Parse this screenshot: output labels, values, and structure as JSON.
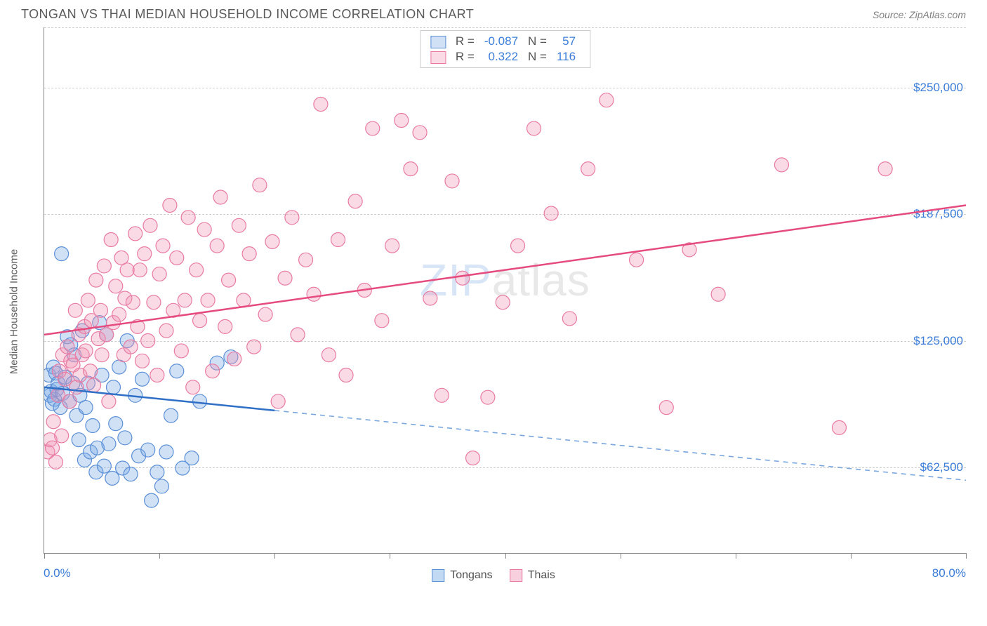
{
  "header": {
    "title": "TONGAN VS THAI MEDIAN HOUSEHOLD INCOME CORRELATION CHART",
    "source": "Source: ZipAtlas.com"
  },
  "chart": {
    "type": "scatter",
    "ylabel": "Median Household Income",
    "xlim": [
      0,
      80
    ],
    "ylim": [
      20000,
      280000
    ],
    "x_axis_start_label": "0.0%",
    "x_axis_end_label": "80.0%",
    "ytick_labels": [
      "$62,500",
      "$125,000",
      "$187,500",
      "$250,000"
    ],
    "ytick_values": [
      62500,
      125000,
      187500,
      250000
    ],
    "xtick_values": [
      0,
      10,
      20,
      30,
      40,
      50,
      60,
      70,
      80
    ],
    "grid_color": "#d0d0d0",
    "background_color": "#ffffff",
    "axis_color": "#888888",
    "marker_radius": 10,
    "marker_stroke_width": 1.2,
    "watermark": "ZIPatlas",
    "series": [
      {
        "name": "Tongans",
        "fill_color": "rgba(120,170,230,0.35)",
        "stroke_color": "#5b8fd6",
        "R": "-0.087",
        "N": "57",
        "trend": {
          "y_start": 102000,
          "y_end": 56000,
          "solid_until_x": 20,
          "solid_color": "#2f6fc5",
          "dash_color": "#7aa6de",
          "width": 2.5
        },
        "points": [
          [
            0.4,
            108000
          ],
          [
            0.5,
            98000
          ],
          [
            0.6,
            100000
          ],
          [
            0.7,
            94000
          ],
          [
            0.8,
            112000
          ],
          [
            0.9,
            96000
          ],
          [
            1.0,
            109000
          ],
          [
            1.1,
            101000
          ],
          [
            1.2,
            104000
          ],
          [
            1.4,
            92000
          ],
          [
            1.5,
            168000
          ],
          [
            1.6,
            99000
          ],
          [
            1.8,
            107000
          ],
          [
            2.0,
            127000
          ],
          [
            2.2,
            95000
          ],
          [
            2.3,
            123000
          ],
          [
            2.5,
            104000
          ],
          [
            2.6,
            118000
          ],
          [
            2.8,
            88000
          ],
          [
            3.0,
            76000
          ],
          [
            3.1,
            98000
          ],
          [
            3.3,
            130000
          ],
          [
            3.5,
            66000
          ],
          [
            3.6,
            92000
          ],
          [
            3.8,
            104000
          ],
          [
            4.0,
            70000
          ],
          [
            4.2,
            83000
          ],
          [
            4.5,
            60000
          ],
          [
            4.6,
            72000
          ],
          [
            4.8,
            134000
          ],
          [
            5.0,
            108000
          ],
          [
            5.2,
            63000
          ],
          [
            5.4,
            128000
          ],
          [
            5.6,
            74000
          ],
          [
            5.9,
            57000
          ],
          [
            6.0,
            102000
          ],
          [
            6.2,
            84000
          ],
          [
            6.5,
            112000
          ],
          [
            6.8,
            62000
          ],
          [
            7.0,
            77000
          ],
          [
            7.2,
            125000
          ],
          [
            7.5,
            59000
          ],
          [
            7.9,
            98000
          ],
          [
            8.2,
            68000
          ],
          [
            8.5,
            106000
          ],
          [
            9.0,
            71000
          ],
          [
            9.3,
            46000
          ],
          [
            9.8,
            60000
          ],
          [
            10.2,
            53000
          ],
          [
            10.6,
            70000
          ],
          [
            11.0,
            88000
          ],
          [
            11.5,
            110000
          ],
          [
            12.0,
            62000
          ],
          [
            12.8,
            67000
          ],
          [
            13.5,
            95000
          ],
          [
            15.0,
            114000
          ],
          [
            16.2,
            117000
          ]
        ]
      },
      {
        "name": "Thais",
        "fill_color": "rgba(240,150,180,0.35)",
        "stroke_color": "#e87ba3",
        "R": "0.322",
        "N": "116",
        "trend": {
          "y_start": 128000,
          "y_end": 192000,
          "solid_until_x": 80,
          "solid_color": "#e54b7e",
          "dash_color": "#e54b7e",
          "width": 2.5
        },
        "points": [
          [
            0.3,
            70000
          ],
          [
            0.5,
            76000
          ],
          [
            0.7,
            72000
          ],
          [
            0.8,
            85000
          ],
          [
            1.0,
            65000
          ],
          [
            1.2,
            98000
          ],
          [
            1.3,
            110000
          ],
          [
            1.5,
            78000
          ],
          [
            1.6,
            118000
          ],
          [
            1.8,
            106000
          ],
          [
            2.0,
            122000
          ],
          [
            2.2,
            95000
          ],
          [
            2.3,
            115000
          ],
          [
            2.5,
            113000
          ],
          [
            2.7,
            140000
          ],
          [
            2.8,
            102000
          ],
          [
            3.0,
            128000
          ],
          [
            3.1,
            108000
          ],
          [
            3.3,
            118000
          ],
          [
            3.5,
            132000
          ],
          [
            3.6,
            120000
          ],
          [
            3.8,
            145000
          ],
          [
            4.0,
            110000
          ],
          [
            4.1,
            135000
          ],
          [
            4.3,
            103000
          ],
          [
            4.5,
            155000
          ],
          [
            4.7,
            126000
          ],
          [
            4.9,
            140000
          ],
          [
            5.0,
            118000
          ],
          [
            5.2,
            162000
          ],
          [
            5.4,
            128000
          ],
          [
            5.6,
            95000
          ],
          [
            5.8,
            175000
          ],
          [
            6.0,
            134000
          ],
          [
            6.2,
            152000
          ],
          [
            6.5,
            138000
          ],
          [
            6.7,
            166000
          ],
          [
            6.9,
            118000
          ],
          [
            7.0,
            146000
          ],
          [
            7.2,
            160000
          ],
          [
            7.5,
            122000
          ],
          [
            7.7,
            144000
          ],
          [
            7.9,
            178000
          ],
          [
            8.1,
            132000
          ],
          [
            8.3,
            160000
          ],
          [
            8.5,
            115000
          ],
          [
            8.7,
            168000
          ],
          [
            9.0,
            125000
          ],
          [
            9.2,
            182000
          ],
          [
            9.5,
            144000
          ],
          [
            9.8,
            108000
          ],
          [
            10.0,
            158000
          ],
          [
            10.3,
            172000
          ],
          [
            10.6,
            130000
          ],
          [
            10.9,
            192000
          ],
          [
            11.2,
            140000
          ],
          [
            11.5,
            166000
          ],
          [
            11.9,
            120000
          ],
          [
            12.2,
            145000
          ],
          [
            12.5,
            186000
          ],
          [
            12.9,
            102000
          ],
          [
            13.2,
            160000
          ],
          [
            13.5,
            135000
          ],
          [
            13.9,
            180000
          ],
          [
            14.2,
            145000
          ],
          [
            14.6,
            110000
          ],
          [
            15.0,
            172000
          ],
          [
            15.3,
            196000
          ],
          [
            15.7,
            132000
          ],
          [
            16.0,
            155000
          ],
          [
            16.5,
            116000
          ],
          [
            16.9,
            182000
          ],
          [
            17.3,
            145000
          ],
          [
            17.8,
            168000
          ],
          [
            18.2,
            122000
          ],
          [
            18.7,
            202000
          ],
          [
            19.2,
            138000
          ],
          [
            19.8,
            174000
          ],
          [
            20.3,
            95000
          ],
          [
            20.9,
            156000
          ],
          [
            21.5,
            186000
          ],
          [
            22.0,
            128000
          ],
          [
            22.7,
            165000
          ],
          [
            23.4,
            148000
          ],
          [
            24.0,
            242000
          ],
          [
            24.7,
            118000
          ],
          [
            25.5,
            175000
          ],
          [
            26.2,
            108000
          ],
          [
            27.0,
            194000
          ],
          [
            27.8,
            150000
          ],
          [
            28.5,
            230000
          ],
          [
            29.3,
            135000
          ],
          [
            30.2,
            172000
          ],
          [
            31.0,
            234000
          ],
          [
            31.8,
            210000
          ],
          [
            32.6,
            228000
          ],
          [
            33.5,
            146000
          ],
          [
            34.5,
            98000
          ],
          [
            35.4,
            204000
          ],
          [
            36.3,
            156000
          ],
          [
            37.2,
            67000
          ],
          [
            38.5,
            97000
          ],
          [
            39.8,
            144000
          ],
          [
            41.1,
            172000
          ],
          [
            42.5,
            230000
          ],
          [
            44.0,
            188000
          ],
          [
            45.6,
            136000
          ],
          [
            47.2,
            210000
          ],
          [
            48.8,
            244000
          ],
          [
            51.4,
            165000
          ],
          [
            54.0,
            92000
          ],
          [
            56.0,
            170000
          ],
          [
            58.5,
            148000
          ],
          [
            64.0,
            212000
          ],
          [
            69.0,
            82000
          ],
          [
            73.0,
            210000
          ]
        ]
      }
    ],
    "legend_bottom": [
      {
        "label": "Tongans",
        "fill": "rgba(120,170,230,0.45)",
        "stroke": "#5b8fd6"
      },
      {
        "label": "Thais",
        "fill": "rgba(240,150,180,0.45)",
        "stroke": "#e87ba3"
      }
    ],
    "legend_top_value_color": "#3b7dd8"
  }
}
